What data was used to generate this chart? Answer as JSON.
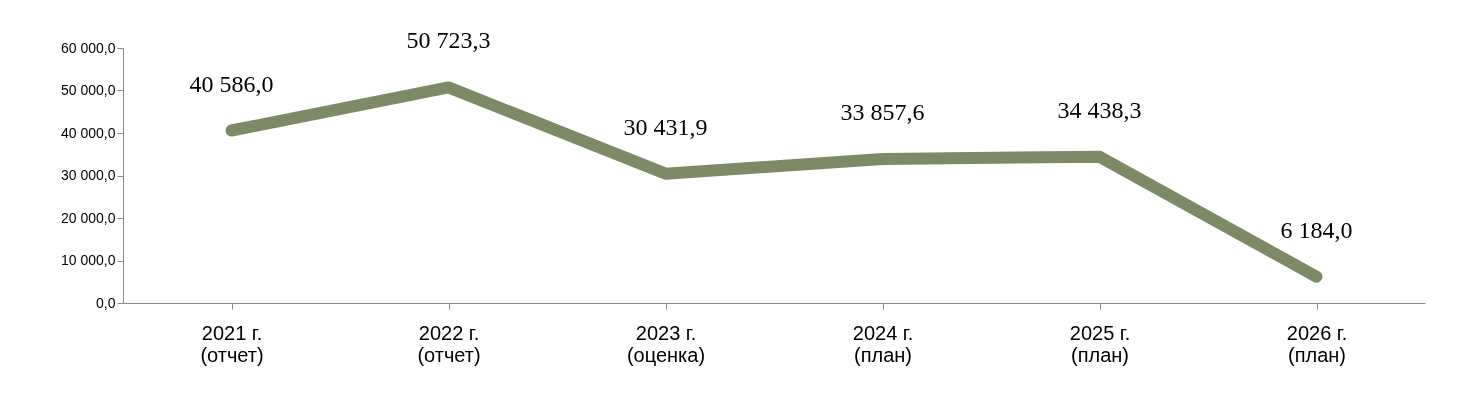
{
  "chart_data": {
    "type": "line",
    "categories": [
      "2021 г.\n(отчет)",
      "2022 г.\n(отчет)",
      "2023 г.\n(оценка)",
      "2024 г.\n(план)",
      "2025 г.\n(план)",
      "2026 г.\n(план)"
    ],
    "series": [
      {
        "color": "#7d8a66",
        "values": [
          40586.0,
          50723.3,
          30431.9,
          33857.6,
          34438.3,
          6184.0
        ],
        "value_labels": [
          "40 586,0",
          "50 723,3",
          "30 431,9",
          "33 857,6",
          "34 438,3",
          "6 184,0"
        ]
      }
    ],
    "ylim": [
      0,
      60000
    ],
    "yticks": [
      {
        "value": 0,
        "label": "0,0"
      },
      {
        "value": 10000,
        "label": "10 000,0"
      },
      {
        "value": 20000,
        "label": "20 000,0"
      },
      {
        "value": 30000,
        "label": "30 000,0"
      },
      {
        "value": 40000,
        "label": "40 000,0"
      },
      {
        "value": 50000,
        "label": "50 000,0"
      },
      {
        "value": 60000,
        "label": "60 000,0"
      }
    ],
    "grid": false,
    "legend": false,
    "marker": "none",
    "line_style": "solid"
  }
}
